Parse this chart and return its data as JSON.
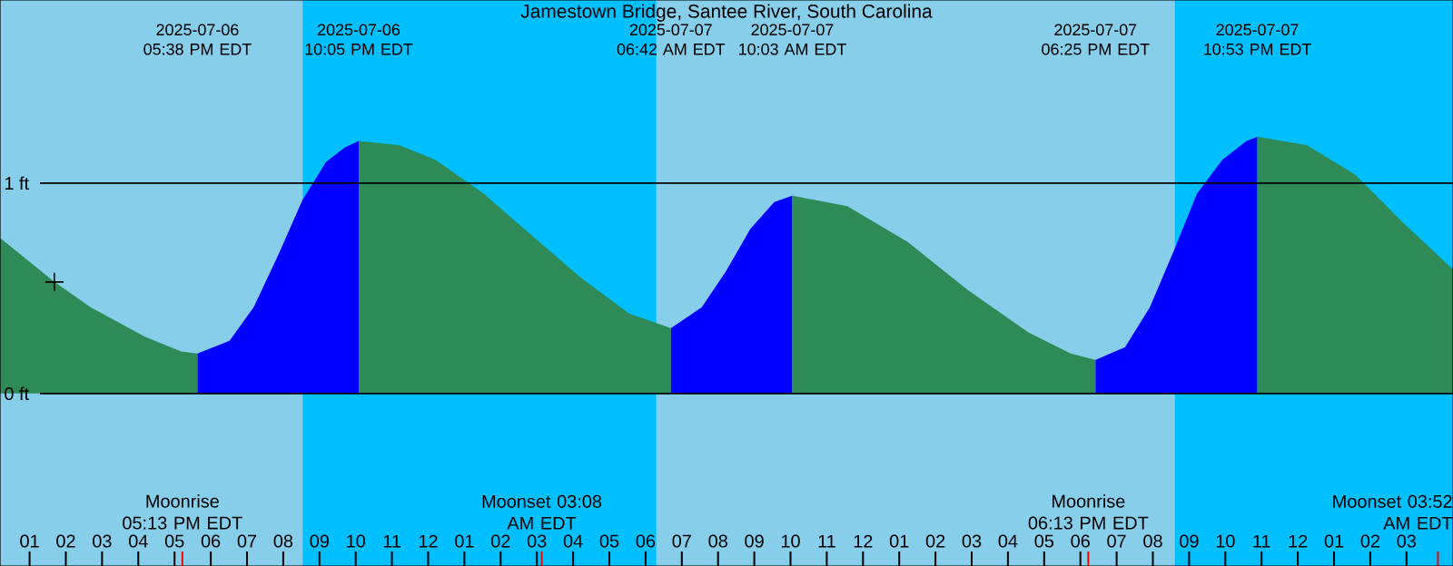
{
  "chart_data": {
    "type": "area",
    "title": "Jamestown Bridge, Santee River, South Carolina",
    "xlim": [
      "2025-07-06T12:11",
      "2025-07-08T04:17"
    ],
    "ylim": [
      -0.82,
      1.87
    ],
    "xticks": [
      {
        "value": "2025-07-06T13:00",
        "label": "01"
      },
      {
        "value": "2025-07-06T14:00",
        "label": "02"
      },
      {
        "value": "2025-07-06T15:00",
        "label": "03"
      },
      {
        "value": "2025-07-06T16:00",
        "label": "04"
      },
      {
        "value": "2025-07-06T17:00",
        "label": "05"
      },
      {
        "value": "2025-07-06T18:00",
        "label": "06"
      },
      {
        "value": "2025-07-06T19:00",
        "label": "07"
      },
      {
        "value": "2025-07-06T20:00",
        "label": "08"
      },
      {
        "value": "2025-07-06T21:00",
        "label": "09"
      },
      {
        "value": "2025-07-06T22:00",
        "label": "10"
      },
      {
        "value": "2025-07-06T23:00",
        "label": "11"
      },
      {
        "value": "2025-07-07T00:00",
        "label": "12"
      },
      {
        "value": "2025-07-07T01:00",
        "label": "01"
      },
      {
        "value": "2025-07-07T02:00",
        "label": "02"
      },
      {
        "value": "2025-07-07T03:00",
        "label": "03"
      },
      {
        "value": "2025-07-07T04:00",
        "label": "04"
      },
      {
        "value": "2025-07-07T05:00",
        "label": "05"
      },
      {
        "value": "2025-07-07T06:00",
        "label": "06"
      },
      {
        "value": "2025-07-07T07:00",
        "label": "07"
      },
      {
        "value": "2025-07-07T08:00",
        "label": "08"
      },
      {
        "value": "2025-07-07T09:00",
        "label": "09"
      },
      {
        "value": "2025-07-07T10:00",
        "label": "10"
      },
      {
        "value": "2025-07-07T11:00",
        "label": "11"
      },
      {
        "value": "2025-07-07T12:00",
        "label": "12"
      },
      {
        "value": "2025-07-07T13:00",
        "label": "01"
      },
      {
        "value": "2025-07-07T14:00",
        "label": "02"
      },
      {
        "value": "2025-07-07T15:00",
        "label": "03"
      },
      {
        "value": "2025-07-07T16:00",
        "label": "04"
      },
      {
        "value": "2025-07-07T17:00",
        "label": "05"
      },
      {
        "value": "2025-07-07T18:00",
        "label": "06"
      },
      {
        "value": "2025-07-07T19:00",
        "label": "07"
      },
      {
        "value": "2025-07-07T20:00",
        "label": "08"
      },
      {
        "value": "2025-07-07T21:00",
        "label": "09"
      },
      {
        "value": "2025-07-07T22:00",
        "label": "10"
      },
      {
        "value": "2025-07-07T23:00",
        "label": "11"
      },
      {
        "value": "2025-07-08T00:00",
        "label": "12"
      },
      {
        "value": "2025-07-08T01:00",
        "label": "01"
      },
      {
        "value": "2025-07-08T02:00",
        "label": "02"
      },
      {
        "value": "2025-07-08T03:00",
        "label": "03"
      }
    ],
    "yticks": [
      {
        "value": 1,
        "label": "1 ft"
      },
      {
        "value": 0,
        "label": "0 ft"
      }
    ],
    "grid": "y",
    "bands": [
      {
        "axis": "x",
        "from": "2025-07-06T12:11",
        "to": "2025-07-06T20:32",
        "color": "#87ceeb"
      },
      {
        "axis": "x",
        "from": "2025-07-06T20:32",
        "to": "2025-07-07T06:18",
        "color": "#00bfff"
      },
      {
        "axis": "x",
        "from": "2025-07-07T06:18",
        "to": "2025-07-07T20:36",
        "color": "#87ceeb"
      },
      {
        "axis": "x",
        "from": "2025-07-07T20:36",
        "to": "2025-07-08T04:17",
        "color": "#00bfff"
      }
    ],
    "series": [
      {
        "color": "#2e8b57",
        "x": [
          "2025-07-06T12:11",
          "2025-07-06T13:41",
          "2025-07-06T14:41",
          "2025-07-06T16:11",
          "2025-07-06T17:11",
          "2025-07-06T17:38"
        ],
        "values": [
          0.74,
          0.53,
          0.41,
          0.27,
          0.2,
          0.19
        ]
      },
      {
        "color": "#0000ff",
        "x": [
          "2025-07-06T17:38",
          "2025-07-06T18:31",
          "2025-07-06T19:11",
          "2025-07-06T19:52",
          "2025-07-06T20:32",
          "2025-07-06T21:11",
          "2025-07-06T21:42",
          "2025-07-06T22:05"
        ],
        "values": [
          0.19,
          0.25,
          0.41,
          0.66,
          0.92,
          1.1,
          1.17,
          1.2
        ]
      },
      {
        "color": "#2e8b57",
        "x": [
          "2025-07-06T22:05",
          "2025-07-06T23:12",
          "2025-07-07T00:12",
          "2025-07-07T01:32",
          "2025-07-07T02:52",
          "2025-07-07T04:13",
          "2025-07-07T05:33",
          "2025-07-07T06:42"
        ],
        "values": [
          1.2,
          1.18,
          1.11,
          0.95,
          0.75,
          0.55,
          0.38,
          0.31
        ]
      },
      {
        "color": "#0000ff",
        "x": [
          "2025-07-07T06:42",
          "2025-07-07T07:33",
          "2025-07-07T08:13",
          "2025-07-07T08:53",
          "2025-07-07T09:33",
          "2025-07-07T10:03"
        ],
        "values": [
          0.31,
          0.41,
          0.58,
          0.78,
          0.91,
          0.94
        ]
      },
      {
        "color": "#2e8b57",
        "x": [
          "2025-07-07T10:03",
          "2025-07-07T11:34",
          "2025-07-07T13:14",
          "2025-07-07T14:54",
          "2025-07-07T16:34",
          "2025-07-07T17:44",
          "2025-07-07T18:25"
        ],
        "values": [
          0.94,
          0.89,
          0.72,
          0.49,
          0.29,
          0.19,
          0.16
        ]
      },
      {
        "color": "#0000ff",
        "x": [
          "2025-07-07T18:25",
          "2025-07-07T19:14",
          "2025-07-07T19:55",
          "2025-07-07T20:35",
          "2025-07-07T21:13",
          "2025-07-07T21:55",
          "2025-07-07T22:35",
          "2025-07-07T22:53"
        ],
        "values": [
          0.16,
          0.22,
          0.41,
          0.68,
          0.95,
          1.11,
          1.2,
          1.22
        ]
      },
      {
        "color": "#2e8b57",
        "x": [
          "2025-07-07T22:53",
          "2025-07-08T00:15",
          "2025-07-08T01:35",
          "2025-07-08T02:55",
          "2025-07-08T04:17"
        ],
        "values": [
          1.22,
          1.18,
          1.04,
          0.81,
          0.59
        ]
      },
      {
        "type": "scatter",
        "marker": "cross",
        "color": "#000000",
        "x": [
          "2025-07-06T13:41"
        ],
        "values": [
          0.53
        ]
      }
    ],
    "annotations": [
      "2025-07-06 05:38 PM EDT",
      "2025-07-06 10:05 PM EDT",
      "2025-07-07 06:42 AM EDT",
      "2025-07-07 10:03 AM EDT",
      "2025-07-07 06:25 PM EDT",
      "2025-07-07 10:53 PM EDT"
    ],
    "ref_lines": [
      {
        "axis": "x",
        "value": "2025-07-06T17:13",
        "label": "Moonrise 05:13 PM EDT",
        "color": "#ff0000"
      },
      {
        "axis": "x",
        "value": "2025-07-07T03:08",
        "label": "Moonset 03:08 AM EDT",
        "color": "#ff0000"
      },
      {
        "axis": "x",
        "value": "2025-07-07T18:13",
        "label": "Moonrise 06:13 PM EDT",
        "color": "#ff0000"
      },
      {
        "axis": "x",
        "value": "2025-07-08T03:52",
        "label": "Moonset 03:52 AM EDT",
        "color": "#ff0000"
      }
    ]
  }
}
